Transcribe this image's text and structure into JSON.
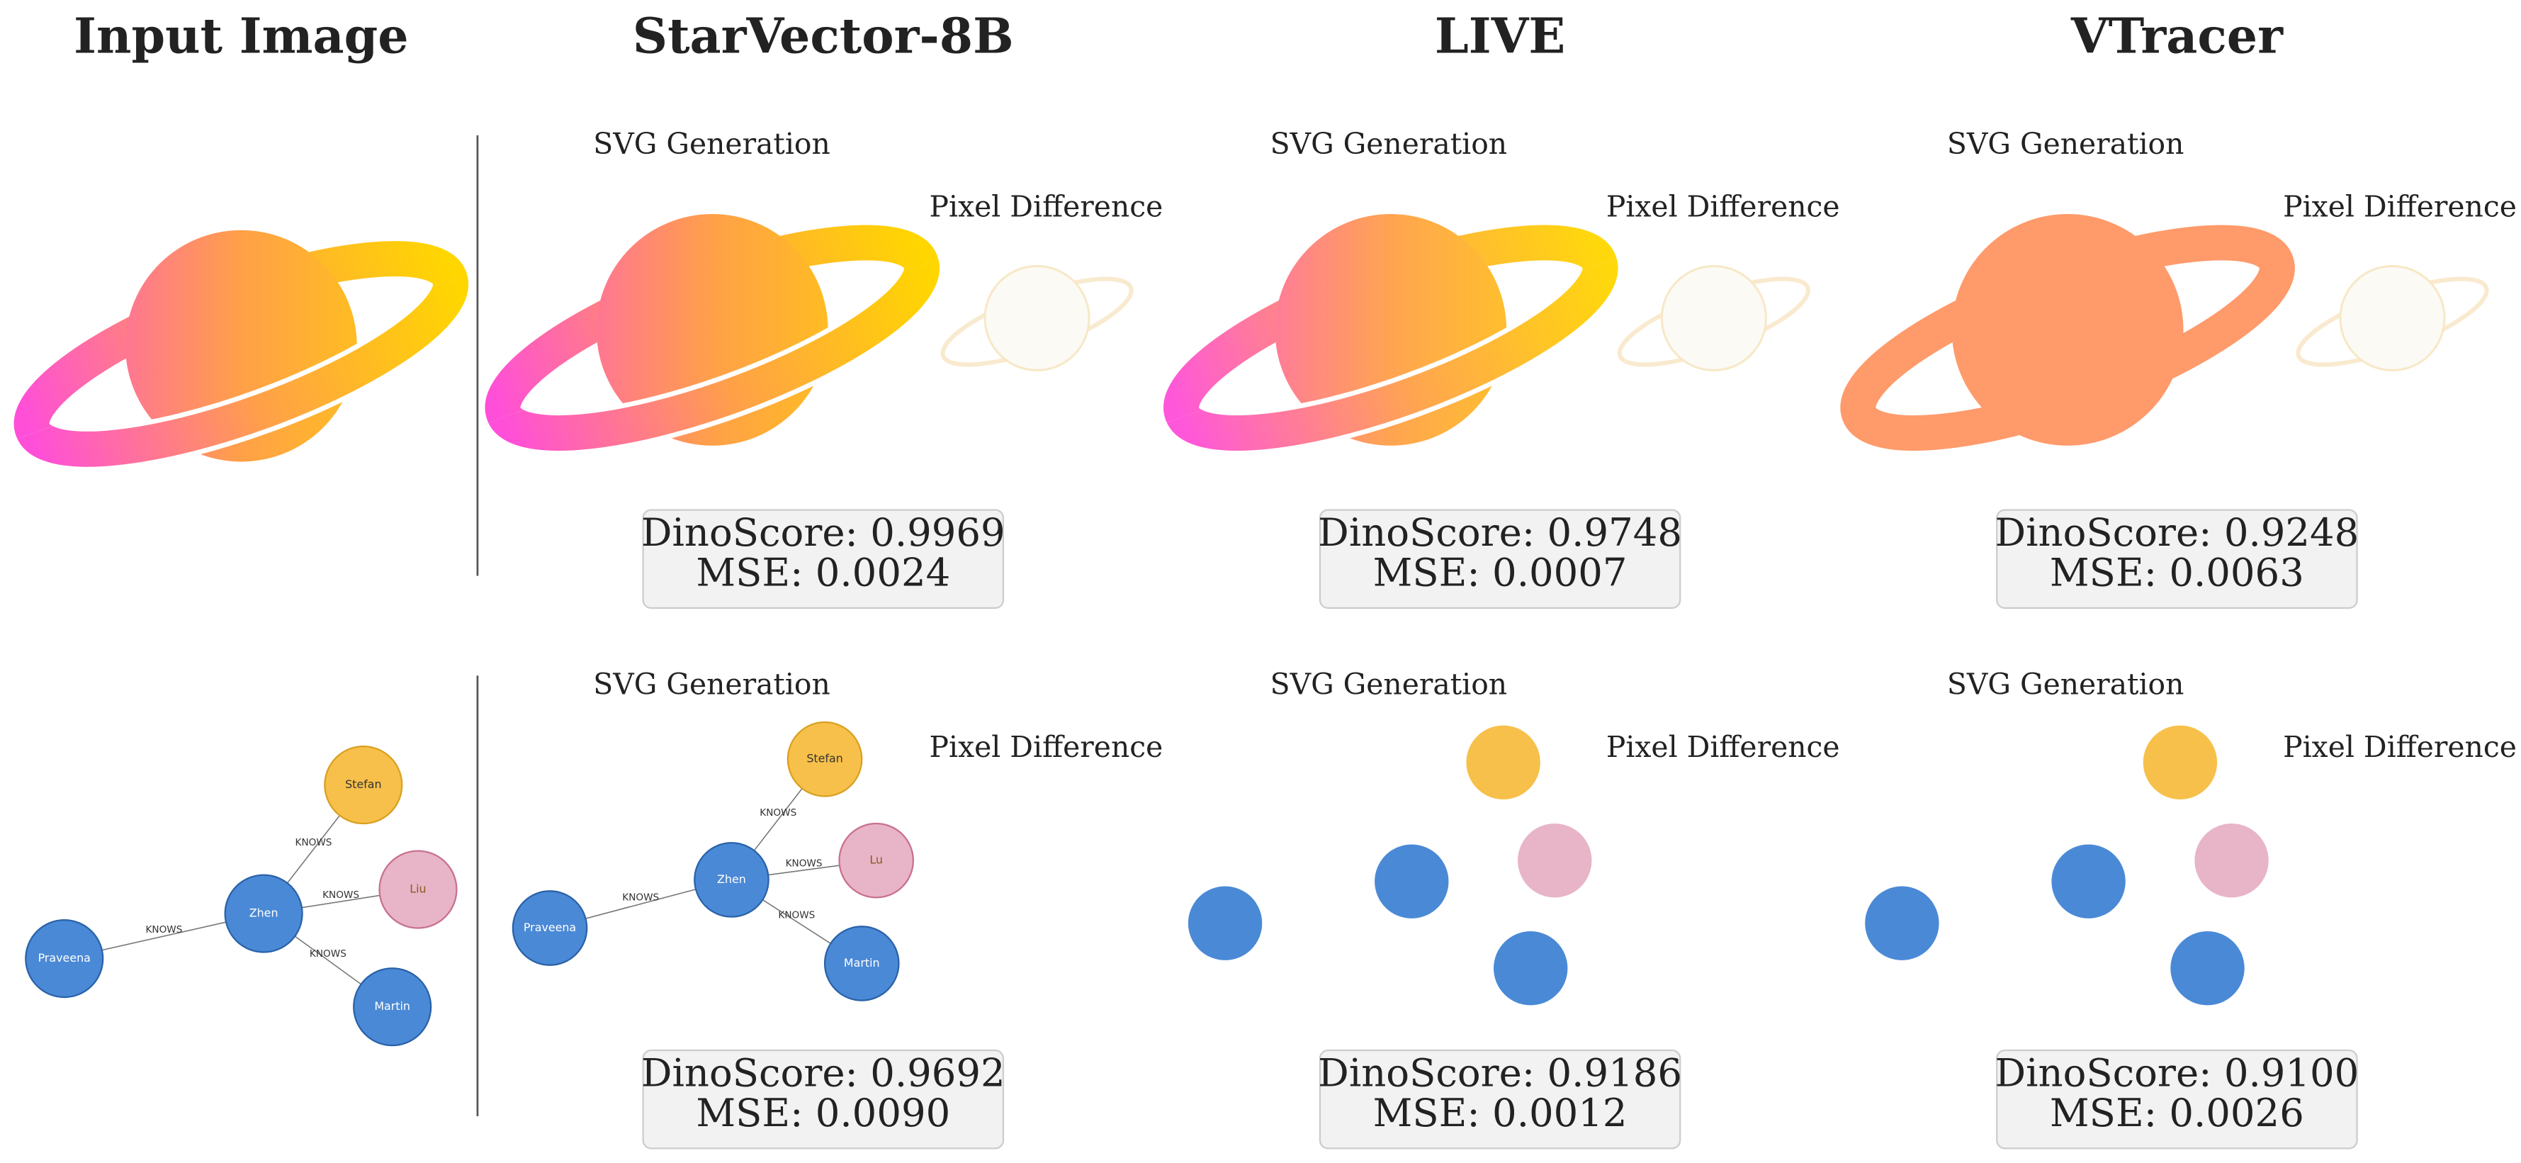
{
  "header": {
    "columns": [
      "Input Image",
      "StarVector-8B",
      "LIVE",
      "VTracer"
    ]
  },
  "panel_labels": {
    "generation": "SVG Generation",
    "difference": "Pixel Difference"
  },
  "rows": [
    {
      "results": [
        {
          "dino": "DinoScore: 0.9969",
          "mse": "MSE: 0.0024"
        },
        {
          "dino": "DinoScore: 0.9748",
          "mse": "MSE: 0.0007"
        },
        {
          "dino": "DinoScore: 0.9248",
          "mse": "MSE: 0.0063"
        }
      ]
    },
    {
      "results": [
        {
          "dino": "DinoScore: 0.9692",
          "mse": "MSE: 0.0090"
        },
        {
          "dino": "DinoScore: 0.9186",
          "mse": "MSE: 0.0012"
        },
        {
          "dino": "DinoScore: 0.9100",
          "mse": "MSE: 0.0026"
        }
      ]
    }
  ],
  "input_graph": {
    "nodes": [
      "Stefan",
      "Zhen",
      "Liu",
      "Praveena",
      "Martin"
    ],
    "edge_label": "KNOWS"
  },
  "starvector_graph": {
    "nodes": [
      "Stefan",
      "Zhen",
      "Lu",
      "Praveena",
      "Martin"
    ],
    "edge_label": "KNOWS"
  }
}
